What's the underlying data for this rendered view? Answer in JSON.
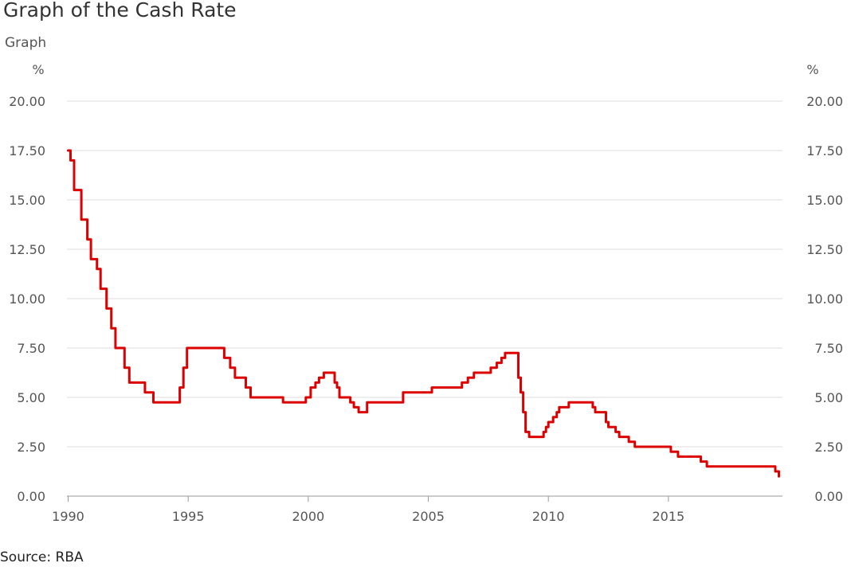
{
  "page": {
    "title": "Graph of the Cash Rate",
    "subheading": "Graph",
    "source": "Source: RBA"
  },
  "chart_data": {
    "type": "line",
    "title": "Graph of the Cash Rate",
    "left_unit": "%",
    "right_unit": "%",
    "xlim": [
      1989.95,
      2019.75
    ],
    "ylim": [
      0,
      20
    ],
    "y_ticks": [
      "0.00",
      "2.50",
      "5.00",
      "7.50",
      "10.00",
      "12.50",
      "15.00",
      "17.50",
      "20.00"
    ],
    "x_ticks": [
      "1990",
      "1995",
      "2000",
      "2005",
      "2010",
      "2015"
    ],
    "grid": true,
    "line_color": "#dd0000",
    "series": [
      {
        "points": [
          [
            1990.0,
            17.5
          ],
          [
            1990.1,
            17.0
          ],
          [
            1990.25,
            15.5
          ],
          [
            1990.55,
            14.0
          ],
          [
            1990.8,
            13.0
          ],
          [
            1990.95,
            12.0
          ],
          [
            1991.2,
            11.5
          ],
          [
            1991.35,
            10.5
          ],
          [
            1991.6,
            9.5
          ],
          [
            1991.8,
            8.5
          ],
          [
            1991.97,
            7.5
          ],
          [
            1992.35,
            6.5
          ],
          [
            1992.55,
            5.75
          ],
          [
            1993.2,
            5.25
          ],
          [
            1993.55,
            4.75
          ],
          [
            1994.65,
            5.5
          ],
          [
            1994.8,
            6.5
          ],
          [
            1994.95,
            7.5
          ],
          [
            1996.5,
            7.0
          ],
          [
            1996.75,
            6.5
          ],
          [
            1996.95,
            6.0
          ],
          [
            1997.4,
            5.5
          ],
          [
            1997.6,
            5.0
          ],
          [
            1998.95,
            4.75
          ],
          [
            1999.9,
            5.0
          ],
          [
            2000.1,
            5.5
          ],
          [
            2000.3,
            5.75
          ],
          [
            2000.45,
            6.0
          ],
          [
            2000.65,
            6.25
          ],
          [
            2001.1,
            5.75
          ],
          [
            2001.2,
            5.5
          ],
          [
            2001.3,
            5.0
          ],
          [
            2001.75,
            4.75
          ],
          [
            2001.9,
            4.5
          ],
          [
            2002.1,
            4.25
          ],
          [
            2002.45,
            4.75
          ],
          [
            2003.95,
            5.25
          ],
          [
            2005.15,
            5.5
          ],
          [
            2006.4,
            5.75
          ],
          [
            2006.65,
            6.0
          ],
          [
            2006.9,
            6.25
          ],
          [
            2007.6,
            6.5
          ],
          [
            2007.85,
            6.75
          ],
          [
            2008.05,
            7.0
          ],
          [
            2008.2,
            7.25
          ],
          [
            2008.75,
            6.0
          ],
          [
            2008.85,
            5.25
          ],
          [
            2008.95,
            4.25
          ],
          [
            2009.05,
            3.25
          ],
          [
            2009.2,
            3.0
          ],
          [
            2009.8,
            3.25
          ],
          [
            2009.9,
            3.5
          ],
          [
            2010.0,
            3.75
          ],
          [
            2010.2,
            4.0
          ],
          [
            2010.35,
            4.25
          ],
          [
            2010.45,
            4.5
          ],
          [
            2010.85,
            4.75
          ],
          [
            2011.85,
            4.5
          ],
          [
            2011.95,
            4.25
          ],
          [
            2012.4,
            3.75
          ],
          [
            2012.5,
            3.5
          ],
          [
            2012.8,
            3.25
          ],
          [
            2012.95,
            3.0
          ],
          [
            2013.35,
            2.75
          ],
          [
            2013.6,
            2.5
          ],
          [
            2015.1,
            2.25
          ],
          [
            2015.4,
            2.0
          ],
          [
            2016.35,
            1.75
          ],
          [
            2016.6,
            1.5
          ],
          [
            2019.45,
            1.25
          ],
          [
            2019.6,
            1.0
          ]
        ]
      }
    ]
  }
}
